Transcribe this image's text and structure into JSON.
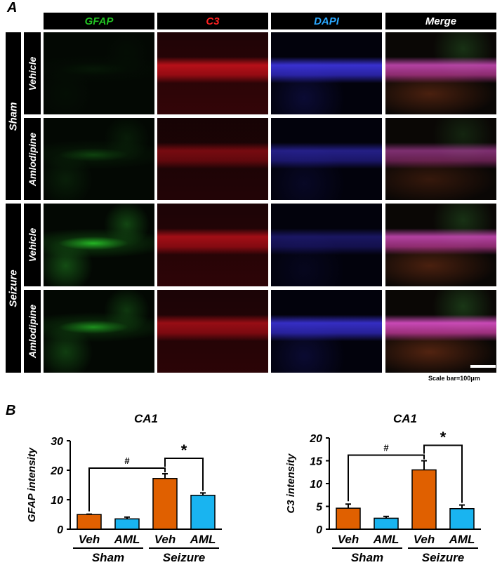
{
  "panel_a": {
    "letter": "A",
    "columns": [
      {
        "label": "GFAP",
        "color": "#22c222"
      },
      {
        "label": "C3",
        "color": "#ff2020"
      },
      {
        "label": "DAPI",
        "color": "#2aa8ff"
      },
      {
        "label": "Merge",
        "color": "#ffffff"
      }
    ],
    "groups": [
      {
        "label": "Sham",
        "rows": [
          "Vehicle",
          "Amlodipine"
        ]
      },
      {
        "label": "Seizure",
        "rows": [
          "Vehicle",
          "Amlodipine"
        ]
      }
    ],
    "scale_bar": "Scale bar=100μm"
  },
  "panel_b": {
    "letter": "B",
    "colors": {
      "veh": "#e06000",
      "aml": "#19b4f0"
    }
  },
  "chart_data": [
    {
      "type": "bar",
      "title": "CA1",
      "ylabel": "GFAP intensity",
      "ylim": [
        0,
        30
      ],
      "yticks": [
        0,
        10,
        20,
        30
      ],
      "categories": [
        "Veh",
        "AML",
        "Veh",
        "AML"
      ],
      "groups": [
        "Sham",
        "Seizure"
      ],
      "values": [
        5,
        3.5,
        17.2,
        11.5
      ],
      "errors": [
        0.1,
        0.6,
        1.6,
        0.8
      ],
      "annotations": [
        "#",
        "*"
      ]
    },
    {
      "type": "bar",
      "title": "CA1",
      "ylabel": "C3 intensity",
      "ylim": [
        0,
        20
      ],
      "yticks": [
        0,
        5,
        10,
        15,
        20
      ],
      "categories": [
        "Veh",
        "AML",
        "Veh",
        "AML"
      ],
      "groups": [
        "Sham",
        "Seizure"
      ],
      "values": [
        4.6,
        2.4,
        13,
        4.5
      ],
      "errors": [
        0.9,
        0.4,
        2.0,
        0.8
      ],
      "annotations": [
        "#",
        "*"
      ]
    }
  ]
}
